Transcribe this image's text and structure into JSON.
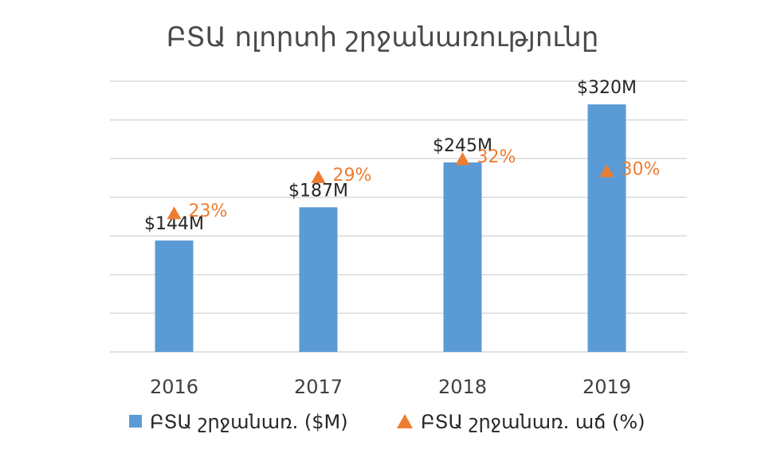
{
  "chart_data": {
    "type": "bar",
    "title": "ԲՏԱ ոլորտի շրջանառությունը",
    "categories": [
      "2016",
      "2017",
      "2018",
      "2019"
    ],
    "series": [
      {
        "name": "ԲՏԱ շրջանառ. ($M)",
        "type": "bar",
        "values": [
          144,
          187,
          245,
          320
        ],
        "labels": [
          "$144M",
          "$187M",
          "$245M",
          "$320M"
        ],
        "color": "#5b9bd5"
      },
      {
        "name": "ԲՏԱ շրջանառ. աճ (%)",
        "type": "scatter",
        "marker": "triangle",
        "values": [
          23,
          29,
          32,
          30
        ],
        "labels": [
          "23%",
          "29%",
          "32%",
          "30%"
        ],
        "color": "#ed7d31"
      }
    ],
    "ylim": [
      0,
      350
    ],
    "y2lim": [
      0,
      45
    ],
    "grid": true,
    "legend": "bottom"
  }
}
